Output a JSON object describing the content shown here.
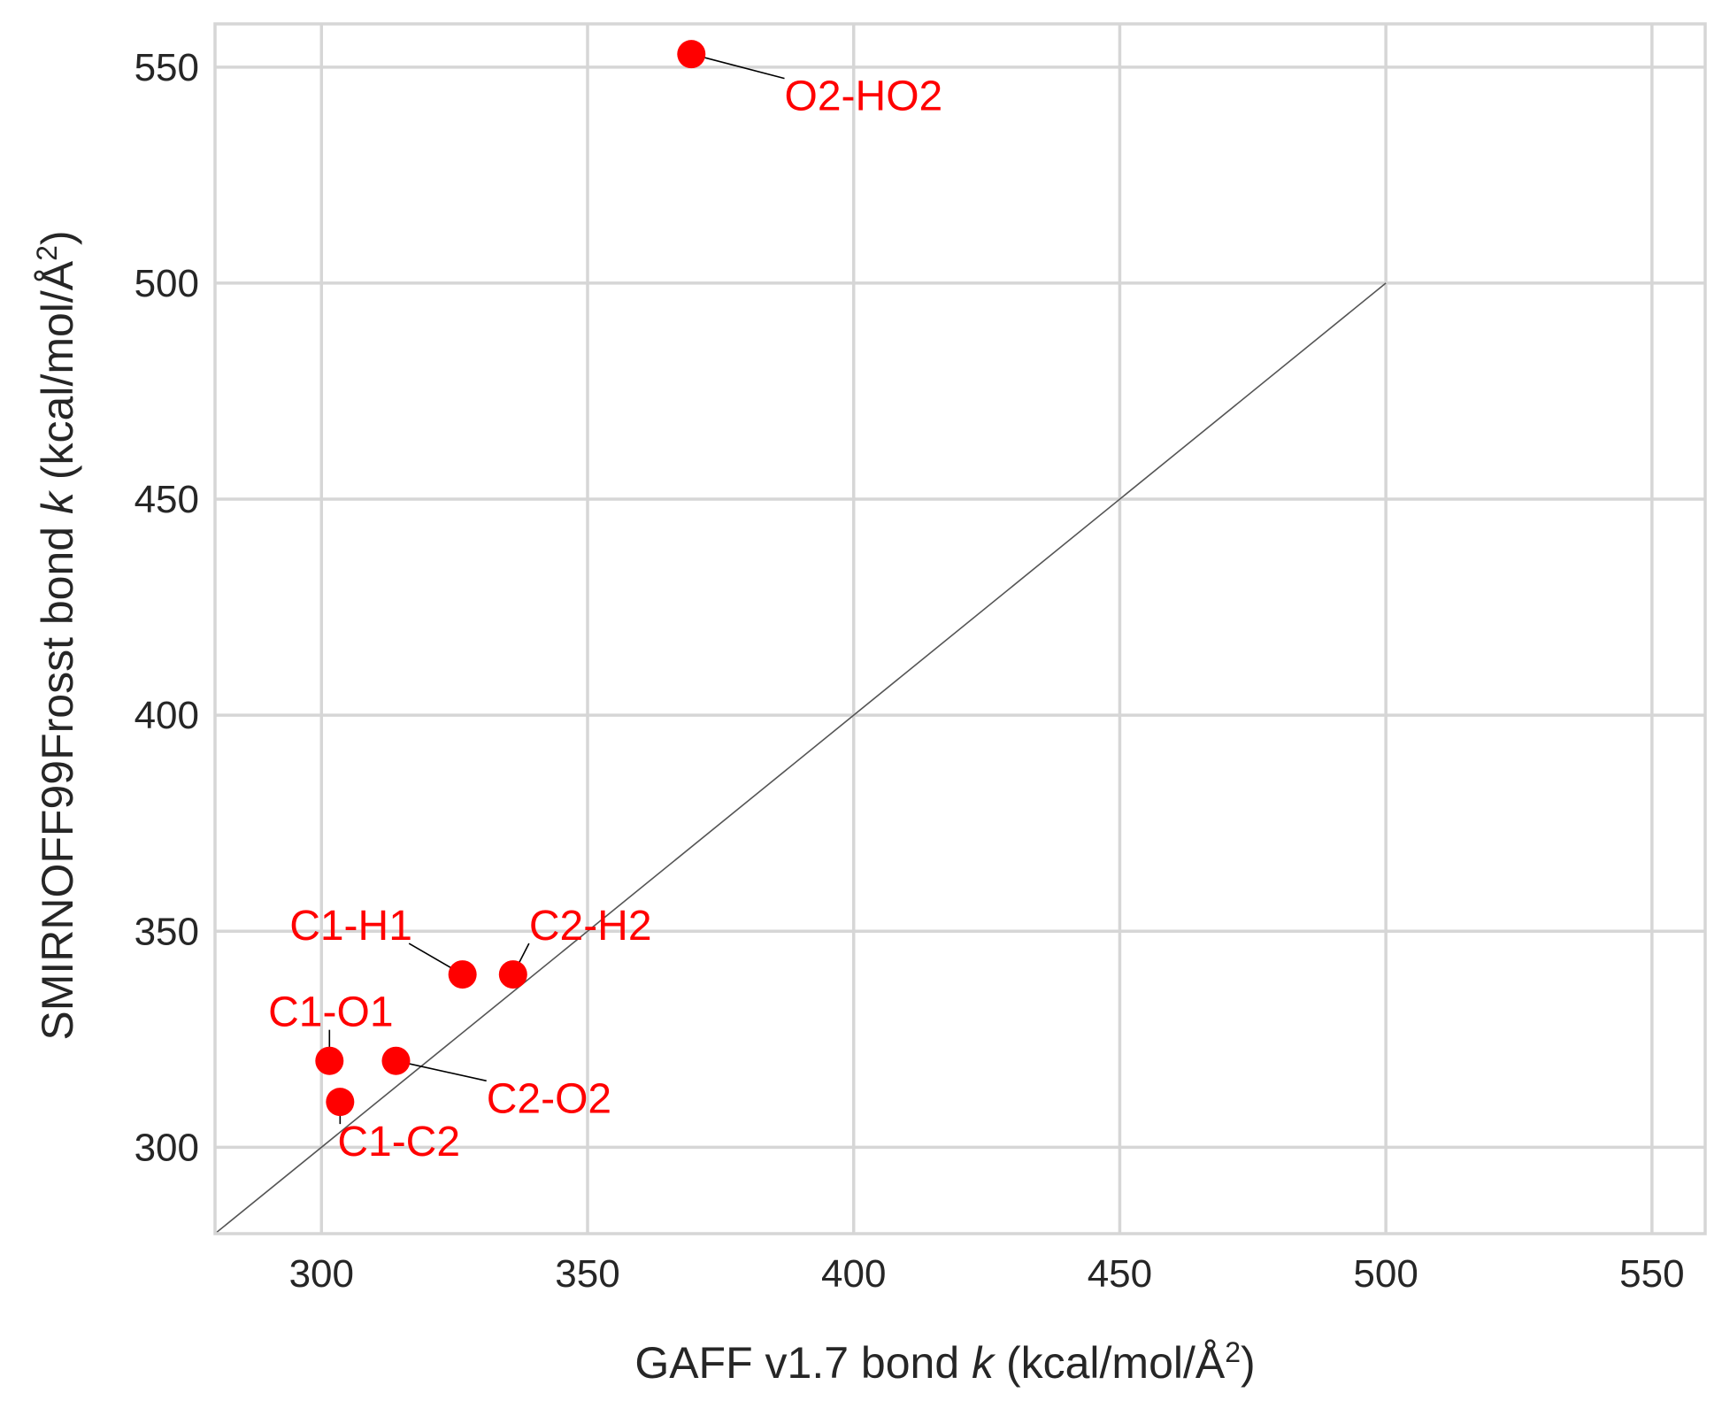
{
  "chart_data": {
    "type": "scatter",
    "title": "",
    "xlabel_parts": {
      "prefix": "GAFF v1.7 bond ",
      "var": "k",
      "suffix": " (kcal/mol/Å",
      "sup": "2",
      "close": ")"
    },
    "ylabel_parts": {
      "prefix": "SMIRNOFF99Frosst bond ",
      "var": "k",
      "suffix": " (kcal/mol/Å",
      "sup": "2",
      "close": ")"
    },
    "xlim": [
      280,
      560
    ],
    "ylim": [
      280,
      560
    ],
    "xticks": [
      300,
      350,
      400,
      450,
      500,
      550
    ],
    "yticks": [
      300,
      350,
      400,
      450,
      500,
      550
    ],
    "grid": true,
    "identity_line": {
      "from": [
        280,
        280
      ],
      "to": [
        500,
        500
      ],
      "color": "#555555"
    },
    "point_color": "#ff0000",
    "points": [
      {
        "label": "O2-HO2",
        "x": 369.5,
        "y": 553.0,
        "label_x": 387,
        "label_y": 540
      },
      {
        "label": "C1-H1",
        "x": 326.5,
        "y": 340.0,
        "label_x": 294,
        "label_y": 348
      },
      {
        "label": "C2-H2",
        "x": 336.0,
        "y": 340.0,
        "label_x": 339,
        "label_y": 348
      },
      {
        "label": "C1-O1",
        "x": 301.5,
        "y": 320.0,
        "label_x": 290,
        "label_y": 328
      },
      {
        "label": "C2-O2",
        "x": 314.0,
        "y": 320.0,
        "label_x": 331,
        "label_y": 308
      },
      {
        "label": "C1-C2",
        "x": 303.5,
        "y": 310.5,
        "label_x": 303,
        "label_y": 298
      }
    ]
  }
}
